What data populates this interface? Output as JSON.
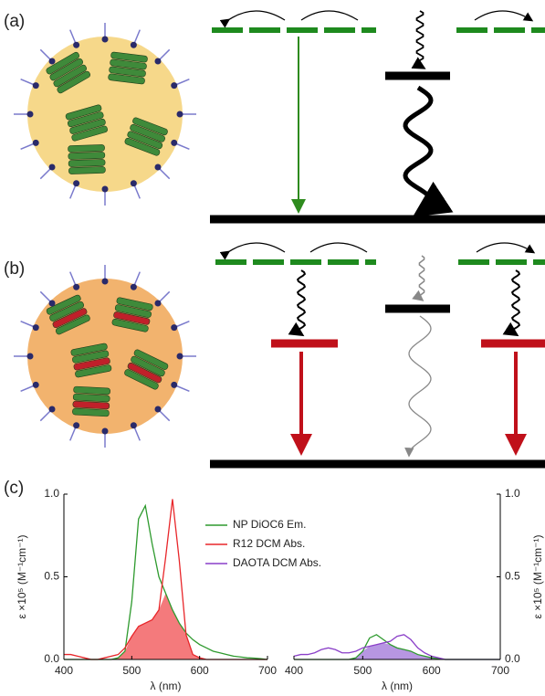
{
  "panel_labels": [
    "(a)",
    "(b)",
    "(c)"
  ],
  "chart_data": [
    {
      "type": "line",
      "xlabel": "λ (nm)",
      "ylabel": "ε ×10⁵ (M⁻¹cm⁻¹)",
      "yaxis_position": "left",
      "legend": "upper right",
      "x": [
        400,
        410,
        420,
        430,
        440,
        450,
        460,
        470,
        480,
        490,
        500,
        510,
        520,
        530,
        540,
        550,
        560,
        570,
        580,
        590,
        600,
        610,
        620,
        630,
        640,
        650,
        660,
        670,
        680,
        690,
        700
      ],
      "xlim": [
        400,
        700
      ],
      "xticks": [
        400,
        500,
        600,
        700
      ],
      "ylim": [
        0,
        1
      ],
      "yticks": [
        {
          "value": 0,
          "label": "0.0"
        },
        0.5,
        {
          "value": 1,
          "label": "1.0"
        }
      ],
      "overlap_fill": "#f47a7c",
      "series": [
        {
          "name": "NP DiOC6 Em.",
          "color": "#2e9a2e",
          "values": [
            0,
            0,
            0,
            0,
            0,
            0,
            0,
            0,
            0.01,
            0.05,
            0.35,
            0.85,
            0.93,
            0.7,
            0.5,
            0.4,
            0.3,
            0.22,
            0.16,
            0.12,
            0.09,
            0.07,
            0.05,
            0.04,
            0.03,
            0.02,
            0.015,
            0.01,
            0.008,
            0.005,
            0
          ]
        },
        {
          "name": "R12 DCM Abs.",
          "color": "#e8262a",
          "values": [
            0.03,
            0.03,
            0.02,
            0.01,
            0,
            0,
            0.01,
            0.02,
            0.03,
            0.07,
            0.14,
            0.2,
            0.22,
            0.24,
            0.3,
            0.62,
            0.97,
            0.6,
            0.15,
            0.03,
            0.01,
            0,
            0,
            0,
            0,
            0,
            0,
            0,
            0,
            0,
            0
          ]
        }
      ]
    },
    {
      "type": "line",
      "xlabel": "λ (nm)",
      "ylabel": "ε ×10⁵ (M⁻¹cm⁻¹)",
      "yaxis_position": "right",
      "x": [
        400,
        410,
        420,
        430,
        440,
        450,
        460,
        470,
        480,
        490,
        500,
        510,
        520,
        530,
        540,
        550,
        560,
        570,
        580,
        590,
        600,
        610,
        620,
        630,
        640,
        650,
        660,
        670,
        680,
        690,
        700
      ],
      "xlim": [
        400,
        700
      ],
      "xticks": [
        400,
        500,
        600,
        700
      ],
      "ylim": [
        0,
        1
      ],
      "yticks": [
        {
          "value": 0,
          "label": "0.0"
        },
        0.5,
        {
          "value": 1,
          "label": "1.0"
        }
      ],
      "overlap_fill": "#b796e2",
      "series": [
        {
          "name": "NP DiOC6 Em.",
          "color": "#2e9a2e",
          "values": [
            0,
            0,
            0,
            0,
            0,
            0,
            0,
            0,
            0,
            0.01,
            0.05,
            0.13,
            0.15,
            0.12,
            0.09,
            0.07,
            0.06,
            0.05,
            0.03,
            0.02,
            0.01,
            0.005,
            0,
            0,
            0,
            0,
            0,
            0,
            0,
            0,
            0
          ]
        },
        {
          "name": "DAOTA DCM Abs.",
          "color": "#8a3fc8",
          "values": [
            0.02,
            0.03,
            0.03,
            0.04,
            0.06,
            0.07,
            0.06,
            0.04,
            0.04,
            0.05,
            0.07,
            0.08,
            0.09,
            0.1,
            0.11,
            0.14,
            0.15,
            0.12,
            0.07,
            0.04,
            0.02,
            0.01,
            0,
            0,
            0,
            0,
            0,
            0,
            0,
            0,
            0
          ]
        }
      ]
    }
  ]
}
